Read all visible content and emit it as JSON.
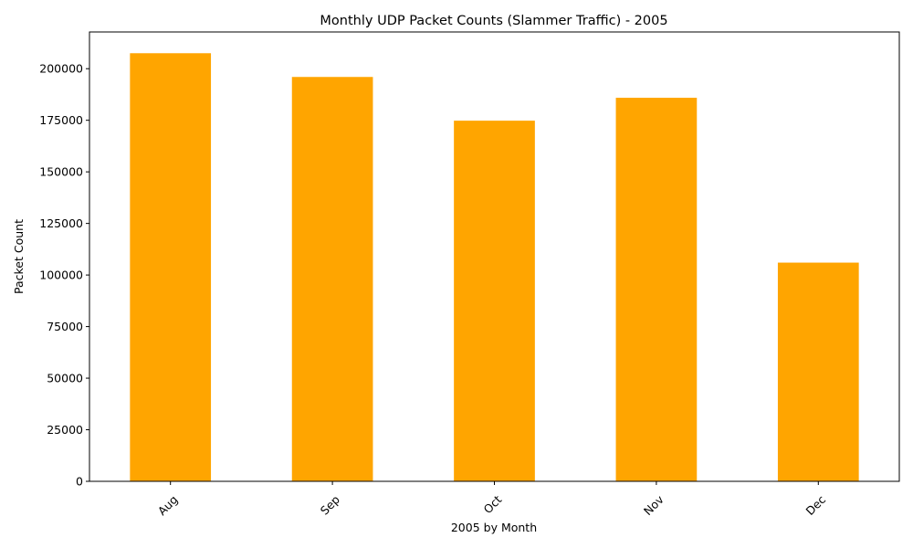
{
  "chart_data": {
    "type": "bar",
    "title": "Monthly UDP Packet Counts (Slammer Traffic) - 2005",
    "xlabel": "2005 by Month",
    "ylabel": "Packet Count",
    "categories": [
      "Aug",
      "Sep",
      "Oct",
      "Nov",
      "Dec"
    ],
    "values": [
      207500,
      196000,
      174800,
      185900,
      106000
    ],
    "ylim": [
      0,
      217800
    ],
    "yticks": [
      0,
      25000,
      50000,
      75000,
      100000,
      125000,
      150000,
      175000,
      200000
    ],
    "ytick_labels": [
      "0",
      "25000",
      "50000",
      "75000",
      "100000",
      "125000",
      "150000",
      "175000",
      "200000"
    ],
    "bar_color": "#FFA500",
    "grid": false,
    "legend": "none",
    "xtick_rotation_deg": 45
  }
}
